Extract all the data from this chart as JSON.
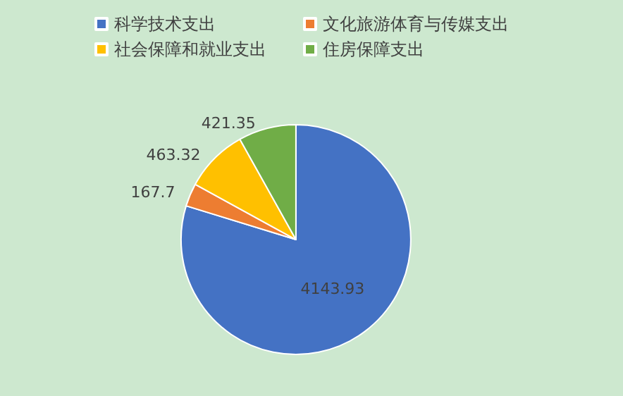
{
  "chart_data": {
    "type": "pie",
    "categories": [
      "科学技术支出",
      "文化旅游体育与传媒支出",
      "社会保障和就业支出",
      "住房保障支出"
    ],
    "values": [
      4143.93,
      167.7,
      463.32,
      421.35
    ],
    "colors": [
      "#4472c4",
      "#ed7d31",
      "#ffc000",
      "#70ad47"
    ],
    "data_labels": true,
    "legend": "top"
  }
}
